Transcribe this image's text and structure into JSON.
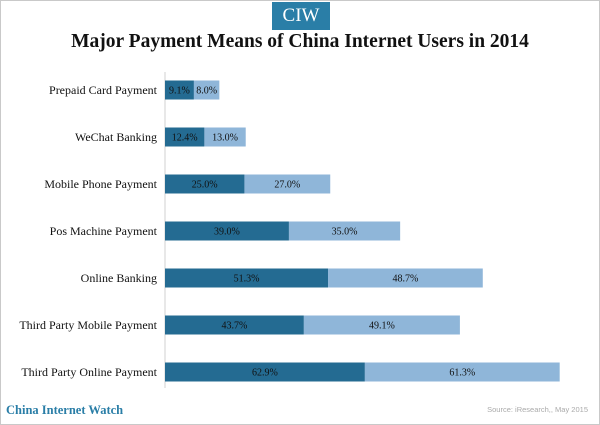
{
  "header": {
    "logo_text": "CIW",
    "title": "Major Payment Means of China Internet Users in 2014"
  },
  "footer": {
    "brand": "China Internet Watch",
    "source": "Source: iResearch,, May 2015"
  },
  "colors": {
    "series_a": "#246b92",
    "series_b": "#8fb6d9",
    "brand": "#2a7ea7"
  },
  "chart_data": {
    "type": "bar",
    "orientation": "horizontal",
    "stacked": true,
    "title": "Major Payment Means of China Internet Users in 2014",
    "xlabel": "",
    "ylabel": "",
    "xlim": [
      0,
      135
    ],
    "grid": false,
    "legend": "none",
    "categories": [
      "Prepaid Card Payment",
      "WeChat Banking",
      "Mobile Phone Payment",
      "Pos Machine Payment",
      "Online Banking",
      "Third Party Mobile Payment",
      "Third Party Online Payment"
    ],
    "series": [
      {
        "values": [
          9.1,
          12.4,
          25.0,
          39.0,
          51.3,
          43.7,
          62.9
        ],
        "labels": [
          "9.1%",
          "12.4%",
          "25.0%",
          "39.0%",
          "51.3%",
          "43.7%",
          "62.9%"
        ],
        "color": "#246b92"
      },
      {
        "values": [
          8.0,
          13.0,
          27.0,
          35.0,
          48.7,
          49.1,
          61.3
        ],
        "labels": [
          "8.0%",
          "13.0%",
          "27.0%",
          "35.0%",
          "48.7%",
          "49.1%",
          "61.3%"
        ],
        "color": "#8fb6d9"
      }
    ]
  }
}
